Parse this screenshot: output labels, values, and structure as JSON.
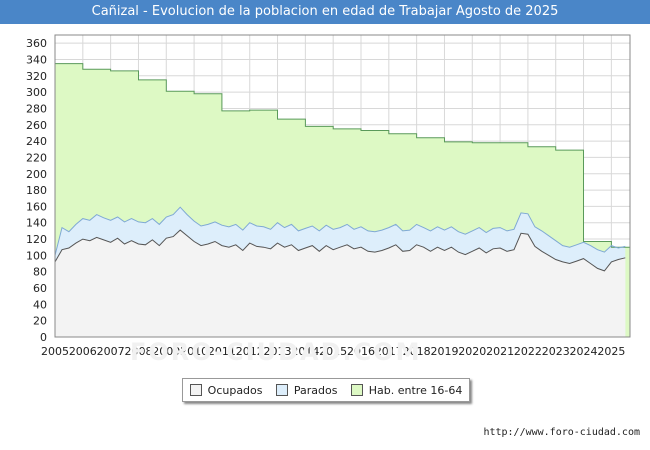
{
  "page": {
    "source_url": "http://www.foro-ciudad.com",
    "watermark": "FORO-CIUDAD.COM"
  },
  "colors": {
    "title_bg": "#4a86c8",
    "hab_fill": "#ddf9c4",
    "hab_line": "#5a9a5a",
    "parados_fill": "#ddeefb",
    "parados_line": "#7fa9d4",
    "ocupados_fill": "#f3f3f3",
    "ocupados_line": "#555555",
    "grid": "#d8d8d8"
  },
  "chart_data": {
    "type": "area",
    "title": "Cañizal - Evolucion de la poblacion en edad de Trabajar Agosto de 2025",
    "xlabel": "",
    "ylabel": "",
    "xlim": [
      2005,
      2025.67
    ],
    "ylim": [
      0,
      370
    ],
    "y_ticks": [
      0,
      20,
      40,
      60,
      80,
      100,
      120,
      140,
      160,
      180,
      200,
      220,
      240,
      260,
      280,
      300,
      320,
      340,
      360
    ],
    "x_ticks": [
      "2005",
      "2006",
      "2007",
      "2008",
      "2009",
      "2010",
      "2011",
      "2012",
      "2013",
      "2014",
      "2015",
      "2016",
      "2017",
      "2018",
      "2019",
      "2020",
      "2021",
      "2022",
      "2023",
      "2024",
      "2025"
    ],
    "grid": true,
    "legend": [
      "Ocupados",
      "Parados",
      "Hab. entre 16-64"
    ],
    "legend_position": "bottom-center",
    "series": [
      {
        "name": "Hab. entre 16-64",
        "annual_start": 2005,
        "values": [
          335,
          328,
          326,
          315,
          301,
          298,
          277,
          278,
          267,
          258,
          255,
          253,
          249,
          244,
          239,
          238,
          238,
          233,
          229,
          117,
          110
        ]
      },
      {
        "name": "Parados",
        "start": 2005,
        "step": 0.25,
        "values": [
          100,
          134,
          129,
          138,
          145,
          143,
          150,
          146,
          143,
          147,
          141,
          145,
          141,
          140,
          145,
          138,
          147,
          150,
          159,
          150,
          142,
          136,
          138,
          141,
          137,
          135,
          138,
          131,
          140,
          136,
          135,
          132,
          140,
          134,
          138,
          130,
          133,
          136,
          130,
          137,
          132,
          134,
          138,
          132,
          135,
          130,
          129,
          131,
          134,
          138,
          130,
          131,
          138,
          134,
          130,
          135,
          131,
          135,
          129,
          126,
          130,
          134,
          128,
          133,
          134,
          130,
          132,
          152,
          151,
          135,
          130,
          124,
          118,
          112,
          110,
          113,
          116,
          112,
          107,
          104,
          112,
          109,
          111
        ]
      },
      {
        "name": "Ocupados",
        "start": 2005,
        "step": 0.25,
        "values": [
          92,
          107,
          109,
          115,
          120,
          118,
          122,
          119,
          116,
          121,
          114,
          118,
          114,
          113,
          119,
          112,
          121,
          123,
          131,
          124,
          117,
          112,
          114,
          117,
          112,
          110,
          113,
          106,
          115,
          111,
          110,
          108,
          115,
          110,
          113,
          106,
          109,
          112,
          105,
          112,
          107,
          110,
          113,
          108,
          110,
          105,
          104,
          106,
          109,
          113,
          105,
          106,
          113,
          110,
          105,
          110,
          106,
          110,
          104,
          101,
          105,
          109,
          103,
          108,
          109,
          105,
          107,
          127,
          126,
          111,
          105,
          100,
          95,
          92,
          90,
          93,
          96,
          90,
          84,
          81,
          92,
          95,
          97
        ]
      }
    ]
  }
}
